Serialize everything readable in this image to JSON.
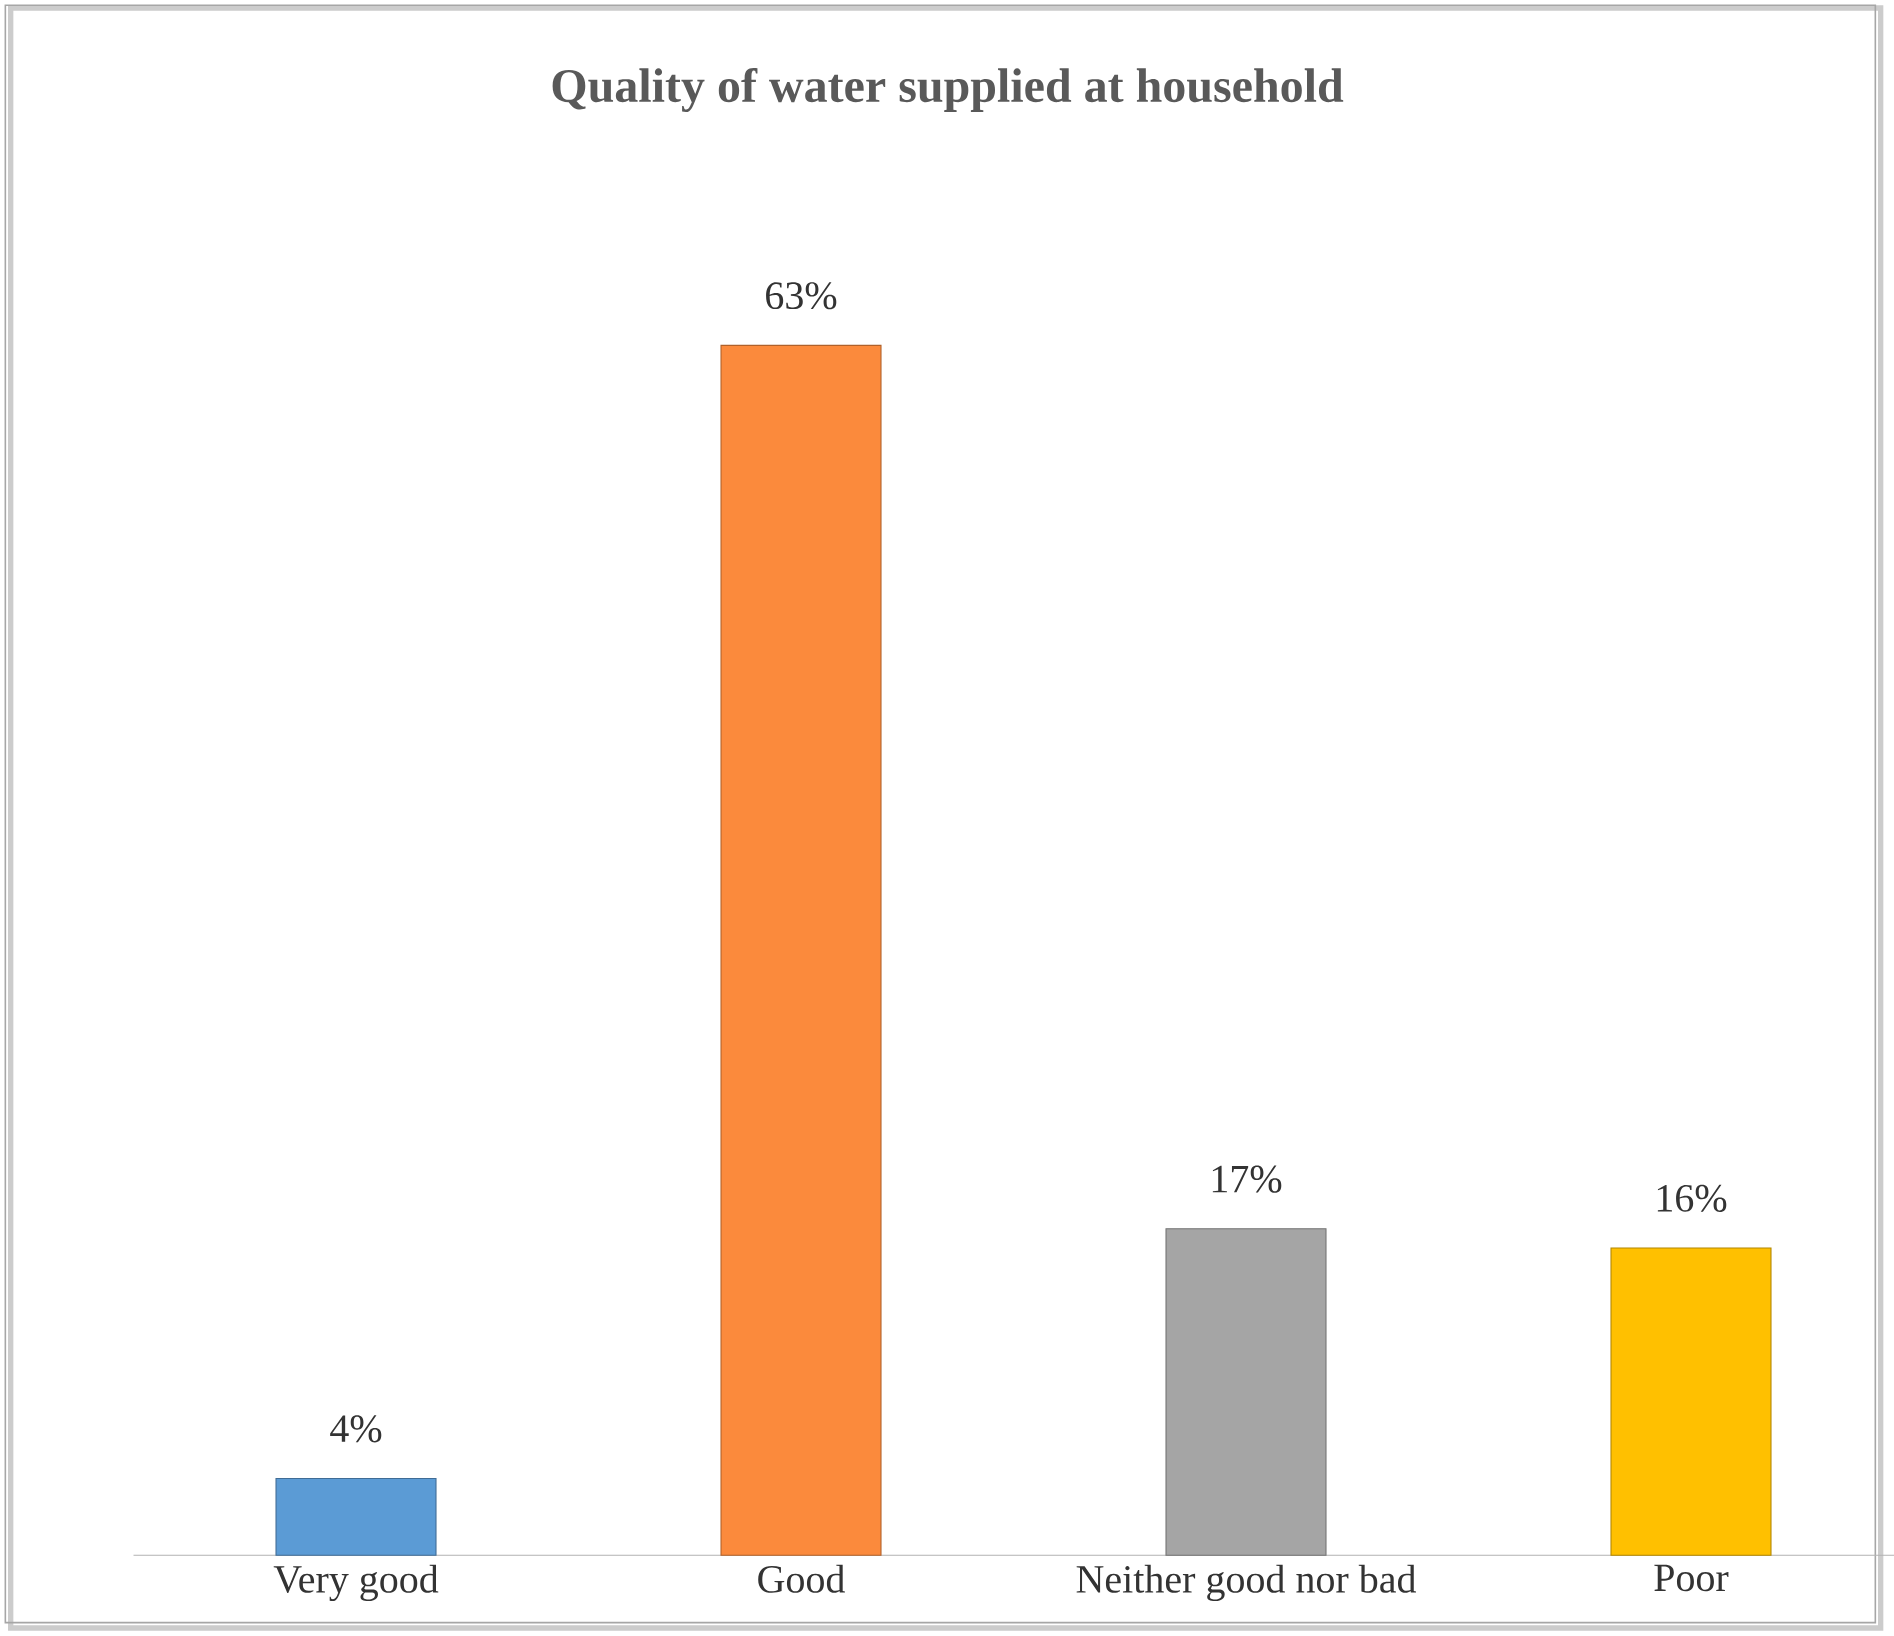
{
  "chart_data": {
    "type": "bar",
    "title": "Quality of water supplied at household",
    "categories": [
      "Very good",
      "Good",
      "Neither good nor bad",
      "Poor"
    ],
    "values": [
      4,
      63,
      17,
      16
    ],
    "colors": [
      "#5b9bd5",
      "#fb8a3c",
      "#a5a5a5",
      "#ffc000"
    ],
    "value_labels": [
      "4%",
      "63%",
      "17%",
      "16%"
    ]
  }
}
